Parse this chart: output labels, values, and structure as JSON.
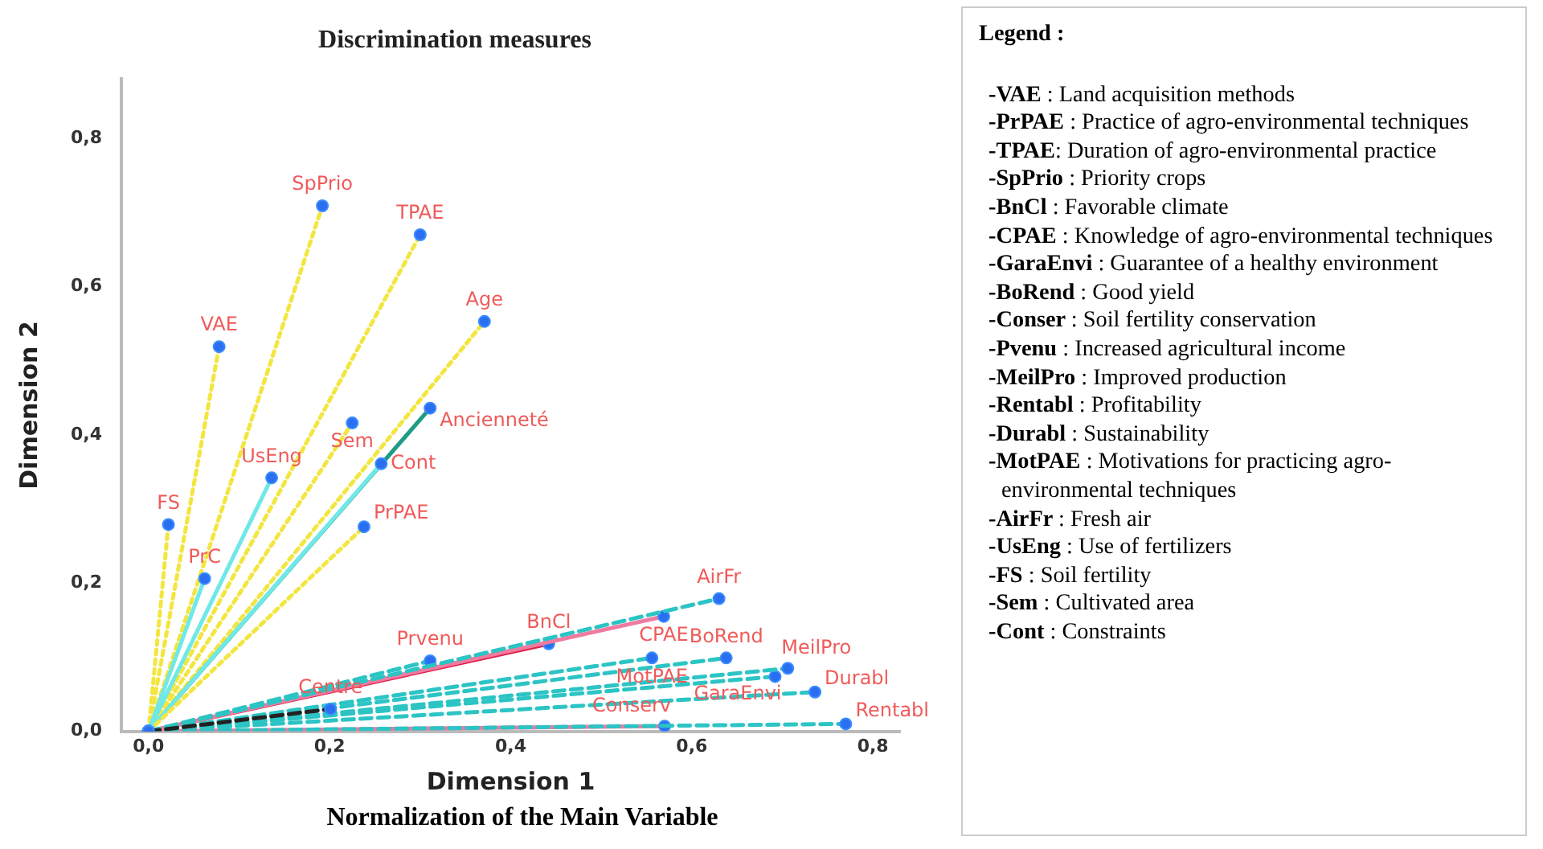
{
  "chart_data": {
    "type": "line",
    "title": "Discrimination measures",
    "xlabel": "Dimension 1",
    "ylabel": "Dimension 2",
    "xlim": [
      -0.03,
      0.83
    ],
    "ylim": [
      0,
      0.88
    ],
    "xticks": [
      {
        "value": 0,
        "label": "0,0"
      },
      {
        "value": 0.2,
        "label": "0,2"
      },
      {
        "value": 0.4,
        "label": "0,4"
      },
      {
        "value": 0.6,
        "label": "0,6"
      },
      {
        "value": 0.8,
        "label": "0,8"
      }
    ],
    "yticks": [
      {
        "value": 0,
        "label": "0,0"
      },
      {
        "value": 0.2,
        "label": "0,2"
      },
      {
        "value": 0.4,
        "label": "0,4"
      },
      {
        "value": 0.6,
        "label": "0,6"
      },
      {
        "value": 0.8,
        "label": "0,8"
      }
    ],
    "grid": false,
    "legend": false,
    "marker": "circle",
    "series": [
      {
        "name": "SpPrio",
        "x": [
          0,
          0.192
        ],
        "values": [
          0,
          0.709
        ],
        "color": "#f2e640",
        "line_style": "dotted"
      },
      {
        "name": "TPAE",
        "x": [
          0,
          0.3
        ],
        "values": [
          0,
          0.67
        ],
        "color": "#f2e640",
        "line_style": "dotted"
      },
      {
        "name": "Age",
        "x": [
          0,
          0.371
        ],
        "values": [
          0,
          0.553
        ],
        "color": "#f2e640",
        "line_style": "dotted"
      },
      {
        "name": "VAE",
        "x": [
          0,
          0.078
        ],
        "values": [
          0,
          0.519
        ],
        "color": "#f2e640",
        "line_style": "dotted"
      },
      {
        "name": "Ancienneté",
        "x": [
          0,
          0.311
        ],
        "values": [
          0,
          0.436
        ],
        "color": "#1f9c86",
        "line_style": "solid"
      },
      {
        "name": "Sem",
        "x": [
          0,
          0.225
        ],
        "values": [
          0,
          0.416
        ],
        "color": "#f2e640",
        "line_style": "dotted"
      },
      {
        "name": "Cont",
        "x": [
          0,
          0.257
        ],
        "values": [
          0,
          0.361
        ],
        "color": "#6fe8e8",
        "line_style": "solid"
      },
      {
        "name": "UsEng",
        "x": [
          0,
          0.136
        ],
        "values": [
          0,
          0.342
        ],
        "color": "#6fe8e8",
        "line_style": "solid"
      },
      {
        "name": "FS",
        "x": [
          0,
          0.022
        ],
        "values": [
          0,
          0.279
        ],
        "color": "#f2e640",
        "line_style": "dotted"
      },
      {
        "name": "PrPAE",
        "x": [
          0,
          0.238
        ],
        "values": [
          0,
          0.276
        ],
        "color": "#f2e640",
        "line_style": "dotted"
      },
      {
        "name": "PrC",
        "x": [
          0,
          0.062
        ],
        "values": [
          0,
          0.206
        ],
        "color": "#6fe8e8",
        "line_style": "solid"
      },
      {
        "name": "Prvenu",
        "x": [
          0,
          0.311
        ],
        "values": [
          0,
          0.095
        ],
        "color": "#2cc4c4",
        "line_style": "dashed"
      },
      {
        "name": "BnCl",
        "x": [
          0,
          0.442
        ],
        "values": [
          0,
          0.118
        ],
        "color": "#e0204a",
        "line_style": "solid"
      },
      {
        "name": "CPAE",
        "x": [
          0,
          0.569
        ],
        "values": [
          0,
          0.155
        ],
        "color": "#f07aa0",
        "line_style": "solid"
      },
      {
        "name": "AirFr",
        "x": [
          0,
          0.63
        ],
        "values": [
          0,
          0.179
        ],
        "color": "#2cc4c4",
        "line_style": "dashed"
      },
      {
        "name": "BoRend",
        "x": [
          0,
          0.638
        ],
        "values": [
          0,
          0.099
        ],
        "color": "#2cc4c4",
        "line_style": "dashed"
      },
      {
        "name": "MotPAE",
        "x": [
          0,
          0.556
        ],
        "values": [
          0,
          0.099
        ],
        "color": "#2cc4c4",
        "line_style": "dashed"
      },
      {
        "name": "GaraEnvi",
        "x": [
          0,
          0.692
        ],
        "values": [
          0,
          0.074
        ],
        "color": "#2cc4c4",
        "line_style": "dashed"
      },
      {
        "name": "MeilPro",
        "x": [
          0,
          0.706
        ],
        "values": [
          0,
          0.085
        ],
        "color": "#2cc4c4",
        "line_style": "dashed"
      },
      {
        "name": "Durabl",
        "x": [
          0,
          0.736
        ],
        "values": [
          0,
          0.053
        ],
        "color": "#2cc4c4",
        "line_style": "dashed"
      },
      {
        "name": "Conserv",
        "x": [
          0,
          0.57
        ],
        "values": [
          0,
          0.007
        ],
        "color": "#f07aa0",
        "line_style": "solid"
      },
      {
        "name": "Rentabl",
        "x": [
          0,
          0.77
        ],
        "values": [
          0,
          0.01
        ],
        "color": "#2cc4c4",
        "line_style": "dashed"
      },
      {
        "name": "Centre",
        "x": [
          0,
          0.201
        ],
        "values": [
          0,
          0.03
        ],
        "color": "#222222",
        "line_style": "dashed"
      }
    ],
    "annotations": [
      "Normalization of the Main Variable",
      "Legend :",
      "-VAE : Land acquisition methods",
      "-PrPAE : Practice of agro-environmental techniques",
      "-TPAE: Duration of agro-environmental practice",
      "-SpPrio : Priority crops",
      "-BnCl : Favorable climate",
      "-CPAE : Knowledge of agro-environmental techniques",
      "-GaraEnvi : Guarantee of a healthy environment",
      "-BoRend : Good yield",
      "-Conser : Soil fertility conservation",
      "-Pvenu : Increased agricultural income",
      "-MeilPro : Improved production",
      "-Rentabl : Profitability",
      "-Durabl : Sustainability",
      "-MotPAE : Motivations for practicing agro-environmental techniques",
      "-AirFr : Fresh air",
      "-UsEng : Use of fertilizers",
      "-FS : Soil fertility",
      "-Sem : Cultivated area",
      "-Cont : Constraints"
    ]
  }
}
